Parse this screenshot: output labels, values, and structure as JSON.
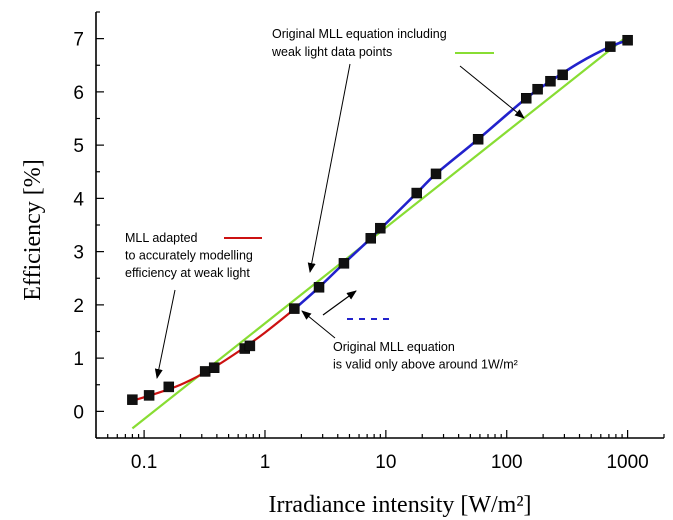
{
  "chart_data": {
    "type": "line",
    "title": "",
    "xlabel": "Irradiance intensity [W/m²]",
    "ylabel": "Efficiency [%]",
    "x_scale": "log",
    "xlim": [
      0.04,
      2000
    ],
    "ylim": [
      -0.5,
      7.5
    ],
    "x_ticks": [
      "0.1",
      "1",
      "10",
      "100",
      "1000"
    ],
    "y_ticks": [
      "0",
      "1",
      "2",
      "3",
      "4",
      "5",
      "6",
      "7"
    ],
    "grid": false,
    "series": [
      {
        "name": "data points",
        "kind": "markers",
        "color": "#111111",
        "x": [
          0.08,
          0.11,
          0.16,
          0.32,
          0.38,
          0.68,
          0.75,
          1.75,
          2.8,
          4.5,
          7.5,
          9.0,
          18,
          26,
          58,
          145,
          180,
          230,
          290,
          720,
          1000
        ],
        "y": [
          0.22,
          0.3,
          0.46,
          0.75,
          0.82,
          1.18,
          1.23,
          1.93,
          2.33,
          2.78,
          3.25,
          3.44,
          4.1,
          4.46,
          5.11,
          5.88,
          6.05,
          6.2,
          6.32,
          6.85,
          6.97
        ]
      },
      {
        "name": "MLL adapted",
        "kind": "line",
        "color": "#cc1111",
        "x": [
          0.08,
          0.12,
          0.2,
          0.35,
          0.6,
          1.0,
          1.75
        ],
        "y": [
          0.2,
          0.32,
          0.5,
          0.78,
          1.12,
          1.48,
          1.92
        ]
      },
      {
        "name": "Original MLL equation",
        "kind": "dashed-line",
        "color": "#2222cc",
        "x": [
          1.75,
          2.8,
          4.5,
          7.5,
          18,
          26,
          58,
          145,
          230,
          400,
          720,
          1000
        ],
        "y": [
          1.92,
          2.33,
          2.78,
          3.25,
          4.1,
          4.46,
          5.11,
          5.88,
          6.2,
          6.55,
          6.85,
          6.97
        ]
      },
      {
        "name": "Original MLL equation including weak light data points",
        "kind": "line",
        "color": "#88dd33",
        "x": [
          0.08,
          1000
        ],
        "y": [
          -0.32,
          7.05
        ]
      }
    ],
    "annotations": [
      {
        "id": "green",
        "lines": [
          "Original MLL equation including",
          "weak light data points"
        ]
      },
      {
        "id": "red",
        "lines": [
          "MLL adapted",
          "to accurately modelling",
          "efficiency at weak light"
        ]
      },
      {
        "id": "blue",
        "lines": [
          "Original MLL equation",
          "is valid only above around 1W/m²"
        ]
      }
    ]
  }
}
